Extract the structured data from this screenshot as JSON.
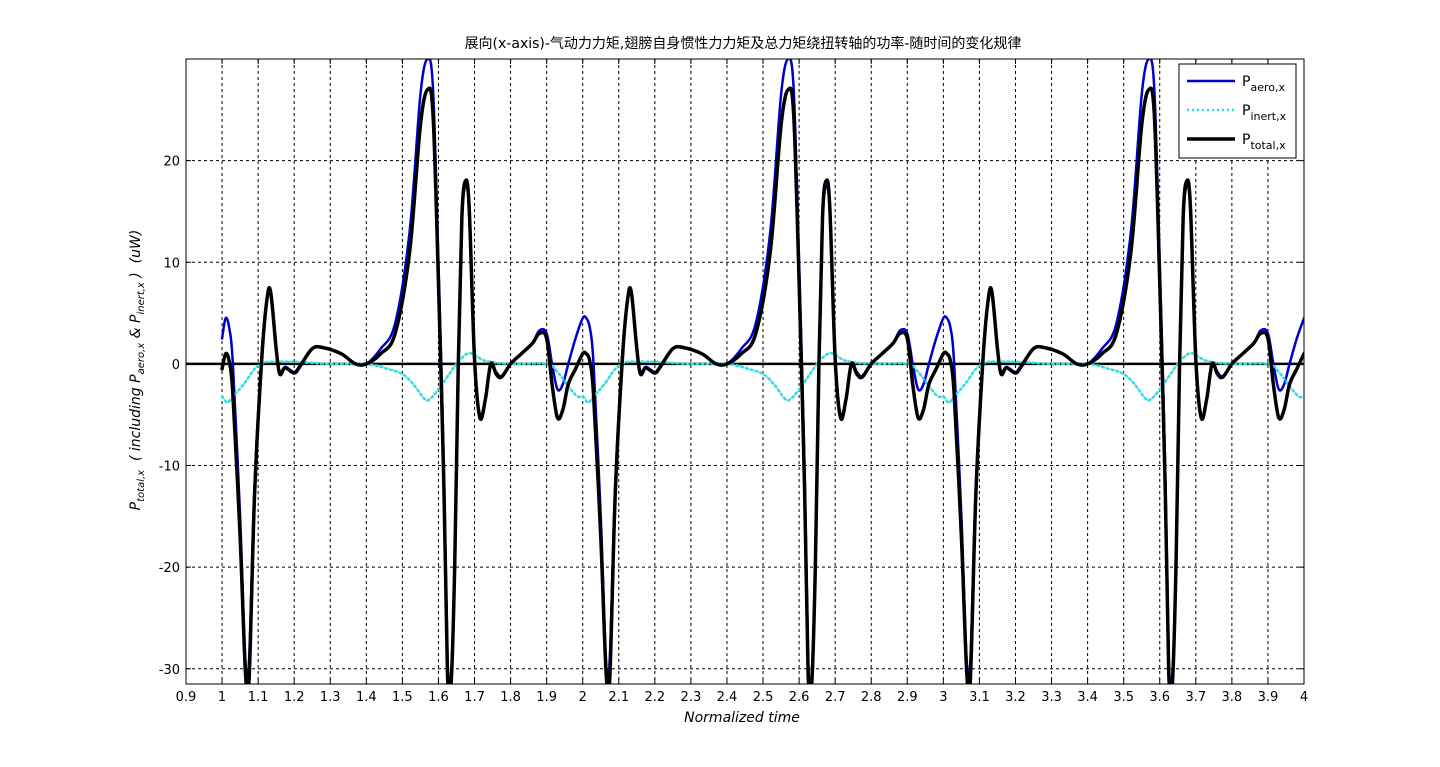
{
  "chart_data": {
    "type": "line",
    "title": "展向(x-axis)-气动力力矩,翅膀自身惯性力力矩及总力矩绕扭转轴的功率-随时间的变化规律",
    "xlabel": "Normalized time",
    "ylabel": {
      "p1": "P",
      "s1": "total,x",
      "p2": "  ( including P",
      "s2": "aero,x",
      "p3": " & P",
      "s3": "inert,x",
      "p4": " )  (uW)"
    },
    "xlim": [
      0.9,
      4.0
    ],
    "ylim": [
      -31.5,
      30.0
    ],
    "xticks": [
      0.9,
      1.0,
      1.1,
      1.2,
      1.3,
      1.4,
      1.5,
      1.6,
      1.7,
      1.8,
      1.9,
      2.0,
      2.1,
      2.2,
      2.3,
      2.4,
      2.5,
      2.6,
      2.7,
      2.8,
      2.9,
      3.0,
      3.1,
      3.2,
      3.3,
      3.4,
      3.5,
      3.6,
      3.7,
      3.8,
      3.9,
      4.0
    ],
    "xtick_labels": [
      "0.9",
      "1",
      "1.1",
      "1.2",
      "1.3",
      "1.4",
      "1.5",
      "1.6",
      "1.7",
      "1.8",
      "1.9",
      "2",
      "2.1",
      "2.2",
      "2.3",
      "2.4",
      "2.5",
      "2.6",
      "2.7",
      "2.8",
      "2.9",
      "3",
      "3.1",
      "3.2",
      "3.3",
      "3.4",
      "3.5",
      "3.6",
      "3.7",
      "3.8",
      "3.9",
      "4"
    ],
    "yticks": [
      -30,
      -20,
      -10,
      0,
      10,
      20
    ],
    "ytick_labels": [
      "-30",
      "-20",
      "-10",
      "0",
      "10",
      "20"
    ],
    "grid": true,
    "legend_position": "top-right",
    "zero_line": true,
    "period": 1.0,
    "x_start": 1.0,
    "x_end": 4.0,
    "series": [
      {
        "name": "P",
        "name_sub": "aero,x",
        "color": "#0000cc",
        "style": "solid",
        "phase": [
          [
            0.0,
            2.5
          ],
          [
            0.01,
            4.5
          ],
          [
            0.02,
            3.5
          ],
          [
            0.03,
            0.0
          ],
          [
            0.05,
            -15.0
          ],
          [
            0.065,
            -29.5
          ],
          [
            0.075,
            -29.0
          ],
          [
            0.09,
            -12.0
          ],
          [
            0.11,
            1.0
          ],
          [
            0.125,
            6.5
          ],
          [
            0.135,
            6.8
          ],
          [
            0.15,
            1.5
          ],
          [
            0.16,
            -0.8
          ],
          [
            0.175,
            -0.3
          ],
          [
            0.2,
            -0.8
          ],
          [
            0.215,
            -0.2
          ],
          [
            0.25,
            1.5
          ],
          [
            0.28,
            1.6
          ],
          [
            0.33,
            1.0
          ],
          [
            0.37,
            0.0
          ],
          [
            0.4,
            0.0
          ],
          [
            0.44,
            1.5
          ],
          [
            0.48,
            4.0
          ],
          [
            0.52,
            13.0
          ],
          [
            0.55,
            26.5
          ],
          [
            0.57,
            30.0
          ],
          [
            0.585,
            27.0
          ],
          [
            0.6,
            10.0
          ],
          [
            0.615,
            -10.0
          ],
          [
            0.625,
            -29.0
          ],
          [
            0.635,
            -30.5
          ],
          [
            0.645,
            -20.0
          ],
          [
            0.655,
            0.0
          ],
          [
            0.665,
            14.0
          ],
          [
            0.675,
            17.5
          ],
          [
            0.685,
            15.0
          ],
          [
            0.7,
            0.0
          ],
          [
            0.715,
            -5.0
          ],
          [
            0.73,
            -3.5
          ],
          [
            0.745,
            0.0
          ],
          [
            0.76,
            -0.8
          ],
          [
            0.775,
            -1.2
          ],
          [
            0.8,
            0.0
          ],
          [
            0.83,
            1.0
          ],
          [
            0.86,
            2.0
          ],
          [
            0.88,
            3.3
          ],
          [
            0.9,
            3.0
          ],
          [
            0.915,
            0.0
          ],
          [
            0.93,
            -2.5
          ],
          [
            0.945,
            -2.0
          ],
          [
            0.96,
            0.0
          ],
          [
            0.98,
            2.5
          ],
          [
            1.0,
            4.5
          ]
        ]
      },
      {
        "name": "P",
        "name_sub": "inert,x",
        "color": "#33dddd",
        "style": "dotted",
        "phase": [
          [
            0.0,
            -3.2
          ],
          [
            0.015,
            -3.8
          ],
          [
            0.03,
            -3.2
          ],
          [
            0.06,
            -2.0
          ],
          [
            0.09,
            -0.5
          ],
          [
            0.11,
            0.0
          ],
          [
            0.13,
            0.2
          ],
          [
            0.2,
            0.2
          ],
          [
            0.3,
            0.0
          ],
          [
            0.4,
            0.0
          ],
          [
            0.46,
            -0.5
          ],
          [
            0.5,
            -1.0
          ],
          [
            0.53,
            -2.0
          ],
          [
            0.56,
            -3.4
          ],
          [
            0.575,
            -3.5
          ],
          [
            0.6,
            -2.5
          ],
          [
            0.63,
            -1.0
          ],
          [
            0.65,
            0.0
          ],
          [
            0.675,
            0.9
          ],
          [
            0.695,
            1.0
          ],
          [
            0.73,
            0.3
          ],
          [
            0.8,
            0.0
          ],
          [
            0.9,
            0.0
          ],
          [
            0.93,
            -0.8
          ],
          [
            0.96,
            -2.2
          ],
          [
            0.985,
            -3.2
          ],
          [
            1.0,
            -3.2
          ]
        ]
      },
      {
        "name": "P",
        "name_sub": "total,x",
        "color": "#000000",
        "style": "solid-thick",
        "phase": [
          [
            0.0,
            -0.5
          ],
          [
            0.01,
            1.0
          ],
          [
            0.02,
            0.2
          ],
          [
            0.03,
            -3.0
          ],
          [
            0.05,
            -17.0
          ],
          [
            0.065,
            -30.5
          ],
          [
            0.075,
            -31.0
          ],
          [
            0.09,
            -13.0
          ],
          [
            0.11,
            0.5
          ],
          [
            0.125,
            6.5
          ],
          [
            0.135,
            7.0
          ],
          [
            0.15,
            1.5
          ],
          [
            0.16,
            -1.0
          ],
          [
            0.175,
            -0.4
          ],
          [
            0.2,
            -0.9
          ],
          [
            0.215,
            -0.3
          ],
          [
            0.25,
            1.5
          ],
          [
            0.28,
            1.6
          ],
          [
            0.33,
            1.0
          ],
          [
            0.37,
            0.0
          ],
          [
            0.4,
            0.0
          ],
          [
            0.44,
            1.0
          ],
          [
            0.48,
            3.0
          ],
          [
            0.52,
            11.0
          ],
          [
            0.55,
            23.5
          ],
          [
            0.57,
            27.0
          ],
          [
            0.585,
            24.5
          ],
          [
            0.6,
            8.0
          ],
          [
            0.615,
            -12.0
          ],
          [
            0.625,
            -30.5
          ],
          [
            0.635,
            -31.5
          ],
          [
            0.645,
            -20.0
          ],
          [
            0.655,
            0.0
          ],
          [
            0.665,
            14.5
          ],
          [
            0.675,
            18.0
          ],
          [
            0.685,
            15.5
          ],
          [
            0.7,
            0.5
          ],
          [
            0.715,
            -5.3
          ],
          [
            0.73,
            -3.5
          ],
          [
            0.745,
            0.0
          ],
          [
            0.76,
            -1.0
          ],
          [
            0.775,
            -1.3
          ],
          [
            0.8,
            0.0
          ],
          [
            0.83,
            1.0
          ],
          [
            0.86,
            2.0
          ],
          [
            0.88,
            3.0
          ],
          [
            0.9,
            2.5
          ],
          [
            0.915,
            -2.0
          ],
          [
            0.93,
            -5.3
          ],
          [
            0.945,
            -4.5
          ],
          [
            0.96,
            -2.0
          ],
          [
            0.98,
            -0.5
          ],
          [
            1.0,
            1.0
          ]
        ]
      }
    ]
  }
}
